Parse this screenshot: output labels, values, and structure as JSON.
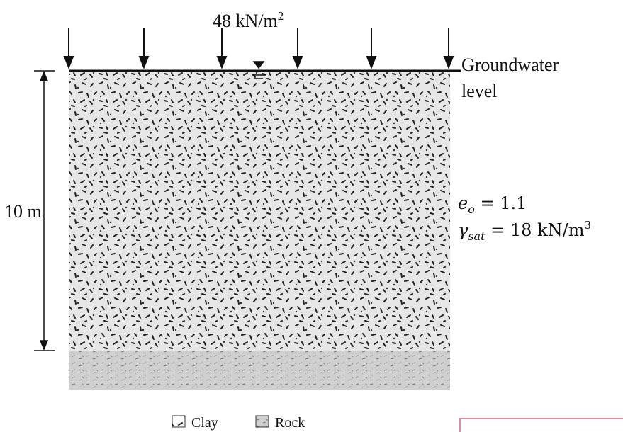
{
  "load": {
    "text": "48 kN/m",
    "sup": "2"
  },
  "water_label": {
    "line1": "Groundwater",
    "line2": "level"
  },
  "depth": "10 m",
  "void_ratio": {
    "symbol": "e",
    "sub": "o",
    "rest": " = 1.1"
  },
  "unit_weight": {
    "symbol": "γ",
    "sub": "sat",
    "rest": " = 18 kN/m",
    "sup": "3"
  },
  "legend": {
    "clay": "Clay",
    "rock": "Rock"
  }
}
